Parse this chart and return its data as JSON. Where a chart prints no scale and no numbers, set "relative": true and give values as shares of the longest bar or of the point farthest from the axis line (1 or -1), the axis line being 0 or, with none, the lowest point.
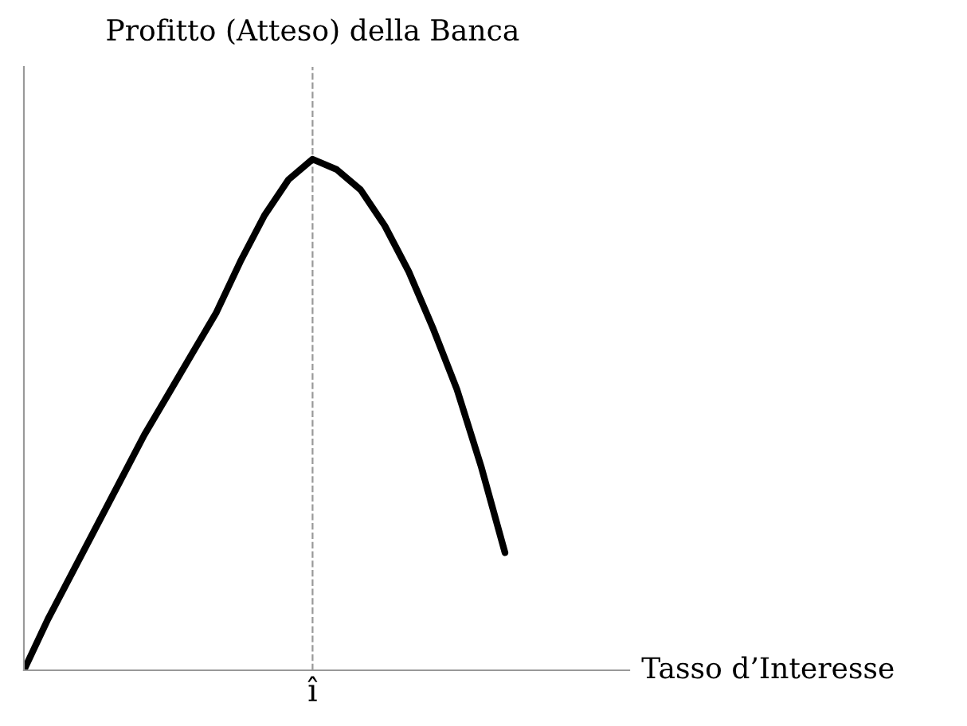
{
  "chart_data": {
    "type": "line",
    "relative": true,
    "title": "Profitto (Atteso) della Banca",
    "xlabel": "Tasso d’Interesse",
    "categories": [
      null,
      null,
      null,
      null,
      null,
      null,
      null,
      null,
      null,
      null,
      null,
      null,
      null,
      null,
      null,
      null,
      null,
      null,
      null,
      null,
      null
    ],
    "series": [
      {
        "color": "#000000",
        "values": [
          0,
          0.1,
          0.19,
          0.28,
          0.37,
          0.46,
          0.54,
          0.62,
          0.7,
          0.8,
          0.89,
          0.96,
          1,
          0.98,
          0.94,
          0.87,
          0.78,
          0.67,
          0.55,
          0.4,
          0.23
        ]
      }
    ],
    "ref_lines": [
      {
        "axis": "x",
        "label": "î",
        "color": "#999999",
        "line_style": "dashed"
      }
    ],
    "marker": "none",
    "line_style": "solid"
  }
}
